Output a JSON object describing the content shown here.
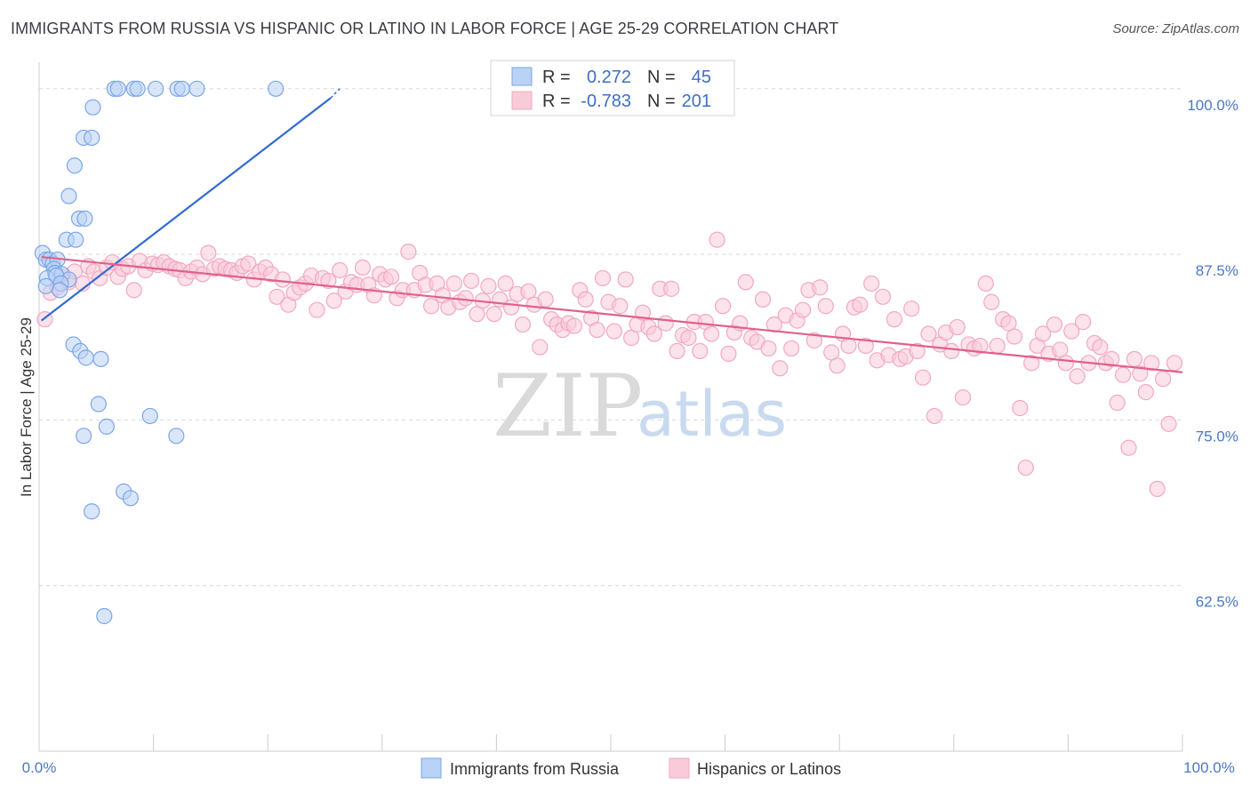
{
  "title": "IMMIGRANTS FROM RUSSIA VS HISPANIC OR LATINO IN LABOR FORCE | AGE 25-29 CORRELATION CHART",
  "source": "Source: ZipAtlas.com",
  "watermark": {
    "zip": "ZIP",
    "atlas": "atlas"
  },
  "chart_data": {
    "type": "scatter",
    "ylabel": "In Labor Force | Age 25-29",
    "xlim": [
      0,
      100
    ],
    "ylim": [
      50,
      102
    ],
    "y_ticks": [
      {
        "value": 100,
        "label": "100.0%"
      },
      {
        "value": 87.5,
        "label": "87.5%"
      },
      {
        "value": 75,
        "label": "75.0%"
      },
      {
        "value": 62.5,
        "label": "62.5%"
      }
    ],
    "x_tick_labels": {
      "left": "0.0%",
      "right": "100.0%"
    },
    "grid": true,
    "legend": {
      "placement": "top-center",
      "rows": [
        {
          "r_label": "R =",
          "r_value": "0.272",
          "n_label": "N =",
          "n_value": "45"
        },
        {
          "r_label": "R =",
          "r_value": "-0.783",
          "n_label": "N =",
          "n_value": "201"
        }
      ]
    },
    "series": [
      {
        "name": "Immigrants from Russia",
        "color": "#7aa6e8",
        "line_color": "#2f6ad4",
        "trend": {
          "x": [
            0.2,
            25.5
          ],
          "y": [
            82.5,
            99.3
          ]
        },
        "trend_dashed": {
          "x": [
            25.5,
            26.3
          ],
          "y": [
            99.3,
            100.0
          ]
        },
        "points": [
          [
            6.6,
            100.0
          ],
          [
            6.9,
            100.0
          ],
          [
            8.3,
            100.0
          ],
          [
            8.6,
            100.0
          ],
          [
            10.2,
            100.0
          ],
          [
            12.1,
            100.0
          ],
          [
            12.5,
            100.0
          ],
          [
            13.8,
            100.0
          ],
          [
            20.7,
            100.0
          ],
          [
            4.7,
            98.6
          ],
          [
            3.9,
            96.3
          ],
          [
            4.6,
            96.3
          ],
          [
            3.1,
            94.2
          ],
          [
            2.6,
            91.9
          ],
          [
            3.5,
            90.2
          ],
          [
            4.0,
            90.2
          ],
          [
            2.4,
            88.6
          ],
          [
            3.2,
            88.6
          ],
          [
            0.3,
            87.6
          ],
          [
            0.6,
            87.1
          ],
          [
            0.9,
            87.1
          ],
          [
            1.2,
            86.8
          ],
          [
            1.6,
            87.1
          ],
          [
            1.3,
            86.4
          ],
          [
            1.4,
            86.1
          ],
          [
            2.0,
            86.0
          ],
          [
            2.6,
            85.6
          ],
          [
            0.7,
            85.7
          ],
          [
            1.5,
            85.9
          ],
          [
            1.9,
            85.3
          ],
          [
            0.6,
            85.1
          ],
          [
            1.8,
            84.8
          ],
          [
            3.0,
            80.7
          ],
          [
            3.6,
            80.2
          ],
          [
            4.1,
            79.7
          ],
          [
            5.4,
            79.6
          ],
          [
            5.2,
            76.2
          ],
          [
            9.7,
            75.3
          ],
          [
            5.9,
            74.5
          ],
          [
            3.9,
            73.8
          ],
          [
            12.0,
            73.8
          ],
          [
            7.4,
            69.6
          ],
          [
            8.0,
            69.1
          ],
          [
            4.6,
            68.1
          ],
          [
            5.7,
            60.2
          ]
        ]
      },
      {
        "name": "Hispanics or Latinos",
        "color": "#f2a8c0",
        "line_color": "#e0608c",
        "trend": {
          "x": [
            0.2,
            100.0
          ],
          "y": [
            87.3,
            78.6
          ]
        },
        "points": [
          [
            0.5,
            82.6
          ],
          [
            1.0,
            84.6
          ],
          [
            1.6,
            85.0
          ],
          [
            2.0,
            85.8
          ],
          [
            2.6,
            85.4
          ],
          [
            3.1,
            86.2
          ],
          [
            3.8,
            85.3
          ],
          [
            4.3,
            86.6
          ],
          [
            4.8,
            86.2
          ],
          [
            5.3,
            85.7
          ],
          [
            5.9,
            86.5
          ],
          [
            6.4,
            86.9
          ],
          [
            6.9,
            85.8
          ],
          [
            7.3,
            86.4
          ],
          [
            7.8,
            86.6
          ],
          [
            8.3,
            84.8
          ],
          [
            8.8,
            87.0
          ],
          [
            9.3,
            86.3
          ],
          [
            9.9,
            86.8
          ],
          [
            10.4,
            86.7
          ],
          [
            10.9,
            86.9
          ],
          [
            11.4,
            86.6
          ],
          [
            11.9,
            86.4
          ],
          [
            12.3,
            86.3
          ],
          [
            12.8,
            85.7
          ],
          [
            13.3,
            86.2
          ],
          [
            13.8,
            86.5
          ],
          [
            14.3,
            86.0
          ],
          [
            14.8,
            87.6
          ],
          [
            15.3,
            86.4
          ],
          [
            15.8,
            86.6
          ],
          [
            16.3,
            86.4
          ],
          [
            16.8,
            86.3
          ],
          [
            17.3,
            86.1
          ],
          [
            17.8,
            86.6
          ],
          [
            18.3,
            86.8
          ],
          [
            18.8,
            85.6
          ],
          [
            19.3,
            86.2
          ],
          [
            19.8,
            86.5
          ],
          [
            20.3,
            86.0
          ],
          [
            20.8,
            84.3
          ],
          [
            21.3,
            85.6
          ],
          [
            21.8,
            83.7
          ],
          [
            22.3,
            84.6
          ],
          [
            22.8,
            85.0
          ],
          [
            23.3,
            85.3
          ],
          [
            23.8,
            85.9
          ],
          [
            24.3,
            83.3
          ],
          [
            24.8,
            85.7
          ],
          [
            25.3,
            85.5
          ],
          [
            25.8,
            84.0
          ],
          [
            26.3,
            86.3
          ],
          [
            26.8,
            84.7
          ],
          [
            27.3,
            85.4
          ],
          [
            27.8,
            85.2
          ],
          [
            28.3,
            86.5
          ],
          [
            28.8,
            85.2
          ],
          [
            29.3,
            84.4
          ],
          [
            29.8,
            86.0
          ],
          [
            30.3,
            85.6
          ],
          [
            30.8,
            85.8
          ],
          [
            31.3,
            84.2
          ],
          [
            31.8,
            84.8
          ],
          [
            32.3,
            87.7
          ],
          [
            32.8,
            84.8
          ],
          [
            33.3,
            86.1
          ],
          [
            33.8,
            85.2
          ],
          [
            34.3,
            83.6
          ],
          [
            34.8,
            85.3
          ],
          [
            35.3,
            84.4
          ],
          [
            35.8,
            83.5
          ],
          [
            36.3,
            85.3
          ],
          [
            36.8,
            83.9
          ],
          [
            37.3,
            84.2
          ],
          [
            37.8,
            85.5
          ],
          [
            38.3,
            83.0
          ],
          [
            38.8,
            84.0
          ],
          [
            39.3,
            85.1
          ],
          [
            39.8,
            83.0
          ],
          [
            40.3,
            84.1
          ],
          [
            40.8,
            85.3
          ],
          [
            41.3,
            83.5
          ],
          [
            41.8,
            84.5
          ],
          [
            42.3,
            82.2
          ],
          [
            42.8,
            84.7
          ],
          [
            43.3,
            83.7
          ],
          [
            43.8,
            80.5
          ],
          [
            44.3,
            84.1
          ],
          [
            44.8,
            82.6
          ],
          [
            45.3,
            82.2
          ],
          [
            45.8,
            81.8
          ],
          [
            46.3,
            82.3
          ],
          [
            46.8,
            82.1
          ],
          [
            47.3,
            84.8
          ],
          [
            47.8,
            84.1
          ],
          [
            48.3,
            82.7
          ],
          [
            48.8,
            81.8
          ],
          [
            49.3,
            85.7
          ],
          [
            49.8,
            83.9
          ],
          [
            50.3,
            81.7
          ],
          [
            50.8,
            83.6
          ],
          [
            51.3,
            85.6
          ],
          [
            51.8,
            81.2
          ],
          [
            52.3,
            82.2
          ],
          [
            52.8,
            83.1
          ],
          [
            53.3,
            82.0
          ],
          [
            53.8,
            81.5
          ],
          [
            54.3,
            84.9
          ],
          [
            54.8,
            82.3
          ],
          [
            55.3,
            84.9
          ],
          [
            55.8,
            80.2
          ],
          [
            56.3,
            81.4
          ],
          [
            56.8,
            81.2
          ],
          [
            57.3,
            82.4
          ],
          [
            57.8,
            80.2
          ],
          [
            58.3,
            82.4
          ],
          [
            58.8,
            81.5
          ],
          [
            59.3,
            88.6
          ],
          [
            59.8,
            83.6
          ],
          [
            60.3,
            80.0
          ],
          [
            60.8,
            81.6
          ],
          [
            61.3,
            82.3
          ],
          [
            61.8,
            85.4
          ],
          [
            62.3,
            81.2
          ],
          [
            62.8,
            80.9
          ],
          [
            63.3,
            84.1
          ],
          [
            63.8,
            80.4
          ],
          [
            64.3,
            82.2
          ],
          [
            64.8,
            78.9
          ],
          [
            65.3,
            82.9
          ],
          [
            65.8,
            80.4
          ],
          [
            66.3,
            82.5
          ],
          [
            66.8,
            83.3
          ],
          [
            67.3,
            84.8
          ],
          [
            67.8,
            81.0
          ],
          [
            68.3,
            85.0
          ],
          [
            68.8,
            83.6
          ],
          [
            69.3,
            80.1
          ],
          [
            69.8,
            79.1
          ],
          [
            70.3,
            81.5
          ],
          [
            70.8,
            80.6
          ],
          [
            71.3,
            83.5
          ],
          [
            71.8,
            83.7
          ],
          [
            72.3,
            80.6
          ],
          [
            72.8,
            85.3
          ],
          [
            73.3,
            79.5
          ],
          [
            73.8,
            84.3
          ],
          [
            74.3,
            79.9
          ],
          [
            74.8,
            82.6
          ],
          [
            75.3,
            79.6
          ],
          [
            75.8,
            79.8
          ],
          [
            76.3,
            83.4
          ],
          [
            76.8,
            80.2
          ],
          [
            77.3,
            78.2
          ],
          [
            77.8,
            81.5
          ],
          [
            78.3,
            75.3
          ],
          [
            78.8,
            80.7
          ],
          [
            79.3,
            81.6
          ],
          [
            79.8,
            80.2
          ],
          [
            80.3,
            82.0
          ],
          [
            80.8,
            76.7
          ],
          [
            81.3,
            80.7
          ],
          [
            81.8,
            80.4
          ],
          [
            82.3,
            80.6
          ],
          [
            82.8,
            85.3
          ],
          [
            83.3,
            83.9
          ],
          [
            83.8,
            80.6
          ],
          [
            84.3,
            82.6
          ],
          [
            84.8,
            82.3
          ],
          [
            85.3,
            81.3
          ],
          [
            85.8,
            75.9
          ],
          [
            86.3,
            71.4
          ],
          [
            86.8,
            79.3
          ],
          [
            87.3,
            80.6
          ],
          [
            87.8,
            81.5
          ],
          [
            88.3,
            80.0
          ],
          [
            88.8,
            82.2
          ],
          [
            89.3,
            80.3
          ],
          [
            89.8,
            79.3
          ],
          [
            90.3,
            81.7
          ],
          [
            90.8,
            78.3
          ],
          [
            91.3,
            82.4
          ],
          [
            91.8,
            79.3
          ],
          [
            92.3,
            80.8
          ],
          [
            92.8,
            80.5
          ],
          [
            93.3,
            79.3
          ],
          [
            93.8,
            79.6
          ],
          [
            94.3,
            76.3
          ],
          [
            94.8,
            78.4
          ],
          [
            95.3,
            72.9
          ],
          [
            95.8,
            79.6
          ],
          [
            96.3,
            78.5
          ],
          [
            96.8,
            77.1
          ],
          [
            97.3,
            79.3
          ],
          [
            97.8,
            69.8
          ],
          [
            98.3,
            78.1
          ],
          [
            98.8,
            74.7
          ],
          [
            99.3,
            79.3
          ]
        ]
      }
    ]
  }
}
